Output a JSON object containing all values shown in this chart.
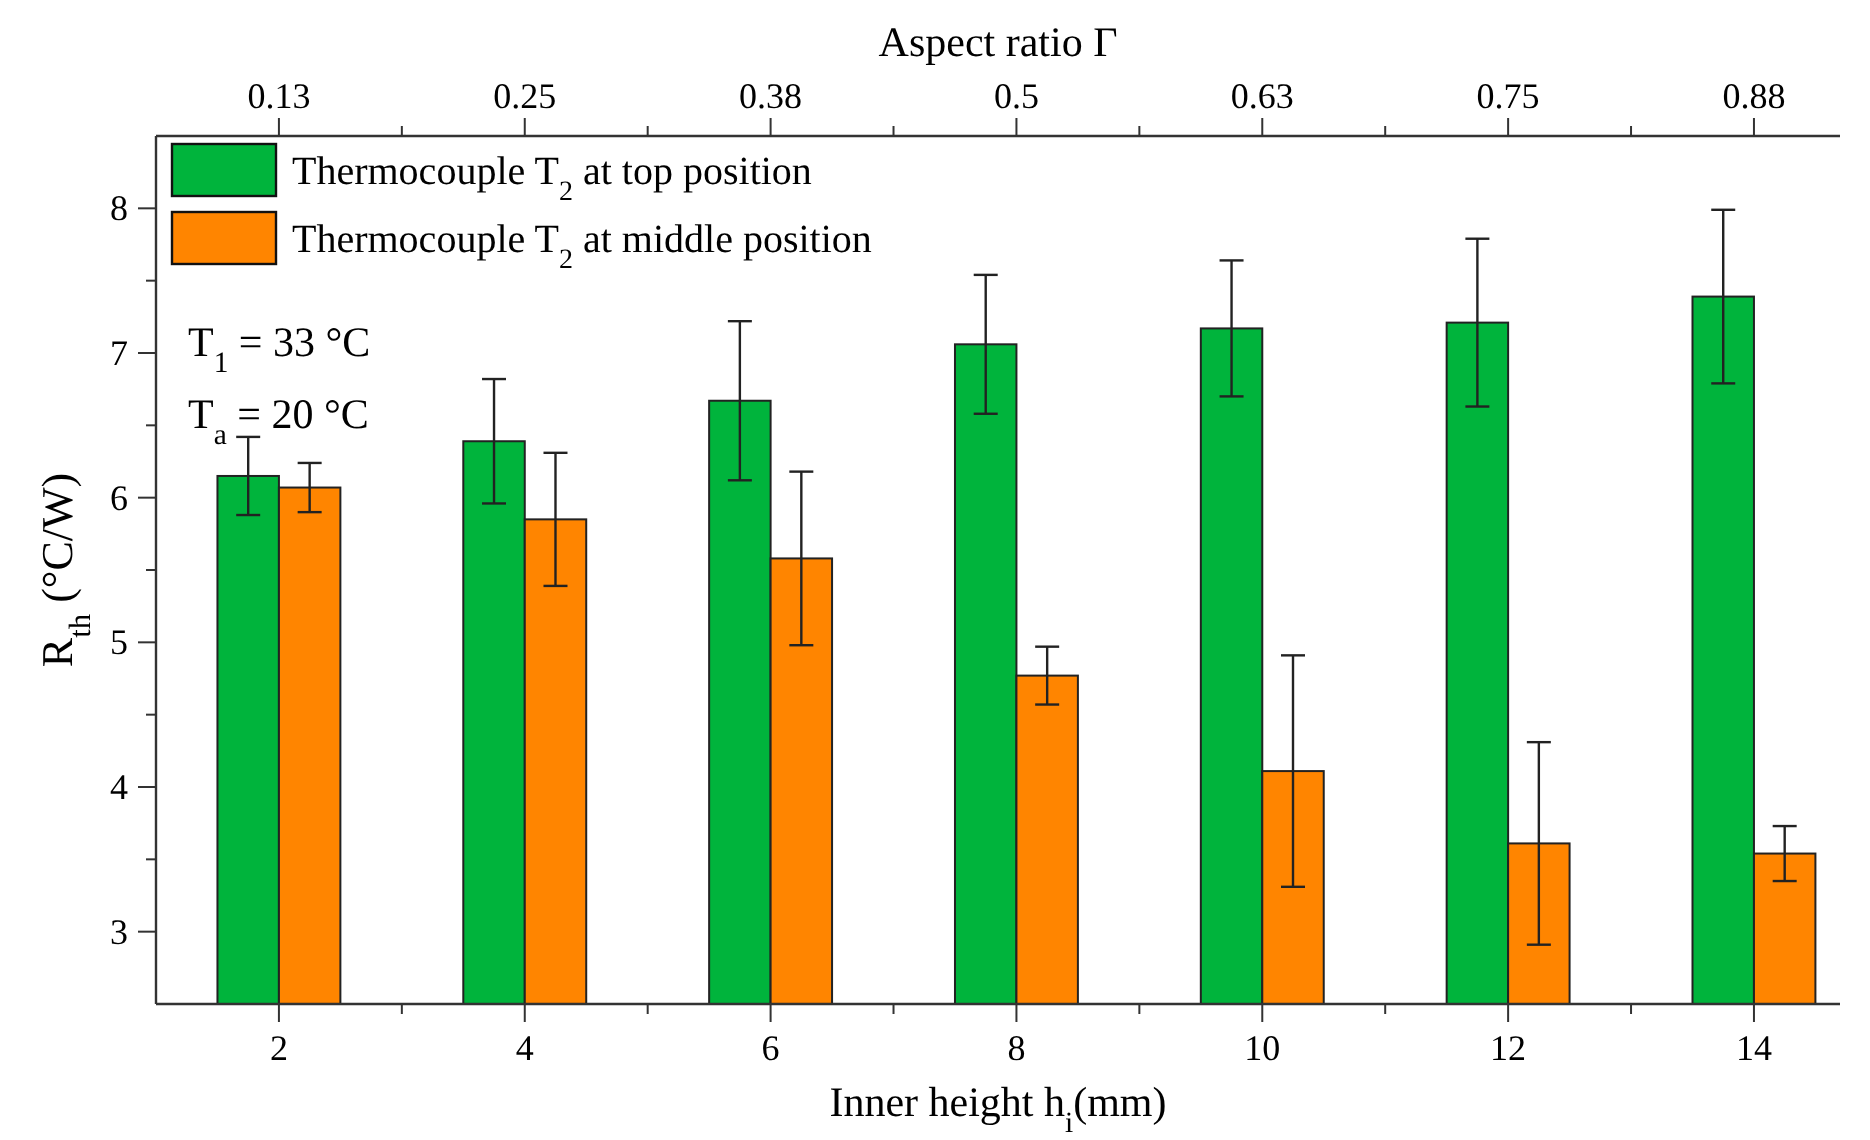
{
  "chart_data": {
    "type": "bar",
    "xlabel": "Inner height h$_{i}$(mm)",
    "ylabel": "R$_{th}$ (°C/W)",
    "x2label": "Aspect ratio Γ",
    "x": [
      2,
      4,
      6,
      8,
      10,
      12,
      14
    ],
    "xlim": [
      1,
      14.7
    ],
    "xticks": [
      2,
      {
        "value": 3,
        "label": null
      },
      4,
      {
        "value": 5,
        "label": null
      },
      6,
      {
        "value": 7,
        "label": null
      },
      8,
      {
        "value": 9,
        "label": null
      },
      10,
      {
        "value": 11,
        "label": null
      },
      12,
      {
        "value": 13,
        "label": null
      },
      14
    ],
    "x2lim": [
      0.0625,
      0.91875
    ],
    "x2ticks": [
      {
        "value": 0.125,
        "label": "0.13"
      },
      {
        "value": 0.1875,
        "label": null
      },
      {
        "value": 0.25,
        "label": "0.25"
      },
      {
        "value": 0.3125,
        "label": null
      },
      {
        "value": 0.375,
        "label": "0.38"
      },
      {
        "value": 0.4375,
        "label": null
      },
      0.5,
      {
        "value": 0.5625,
        "label": null
      },
      {
        "value": 0.625,
        "label": "0.63"
      },
      {
        "value": 0.6875,
        "label": null
      },
      {
        "value": 0.75,
        "label": "0.75"
      },
      {
        "value": 0.8125,
        "label": null
      },
      {
        "value": 0.875,
        "label": "0.88"
      }
    ],
    "ylim": [
      2.5,
      8.5
    ],
    "yticks": [
      {
        "value": 3,
        "label": "3"
      },
      {
        "value": 3.5,
        "label": null
      },
      4,
      {
        "value": 4.5,
        "label": null
      },
      5,
      {
        "value": 5.5,
        "label": null
      },
      6,
      {
        "value": 6.5,
        "label": null
      },
      7,
      {
        "value": 7.5,
        "label": null
      },
      8
    ],
    "grid": false,
    "legend": "top left",
    "series": [
      {
        "name": "Thermocouple T$_{2}$ at top position",
        "color": "#00b43c",
        "values": [
          6.15,
          6.39,
          6.67,
          7.06,
          7.17,
          7.21,
          7.39
        ],
        "errors": [
          0.27,
          0.43,
          0.55,
          0.48,
          0.47,
          0.58,
          0.6
        ]
      },
      {
        "name": "Thermocouple T$_{2}$ at middle position",
        "color": "#ff8500",
        "values": [
          6.07,
          5.85,
          5.58,
          4.77,
          4.11,
          3.61,
          3.54
        ],
        "errors": [
          0.17,
          0.46,
          0.6,
          0.2,
          0.8,
          0.7,
          0.19
        ]
      }
    ],
    "annotations": [
      "T$_{1}$ = 33 °C",
      "T$_{a}$ = 20 °C"
    ]
  }
}
